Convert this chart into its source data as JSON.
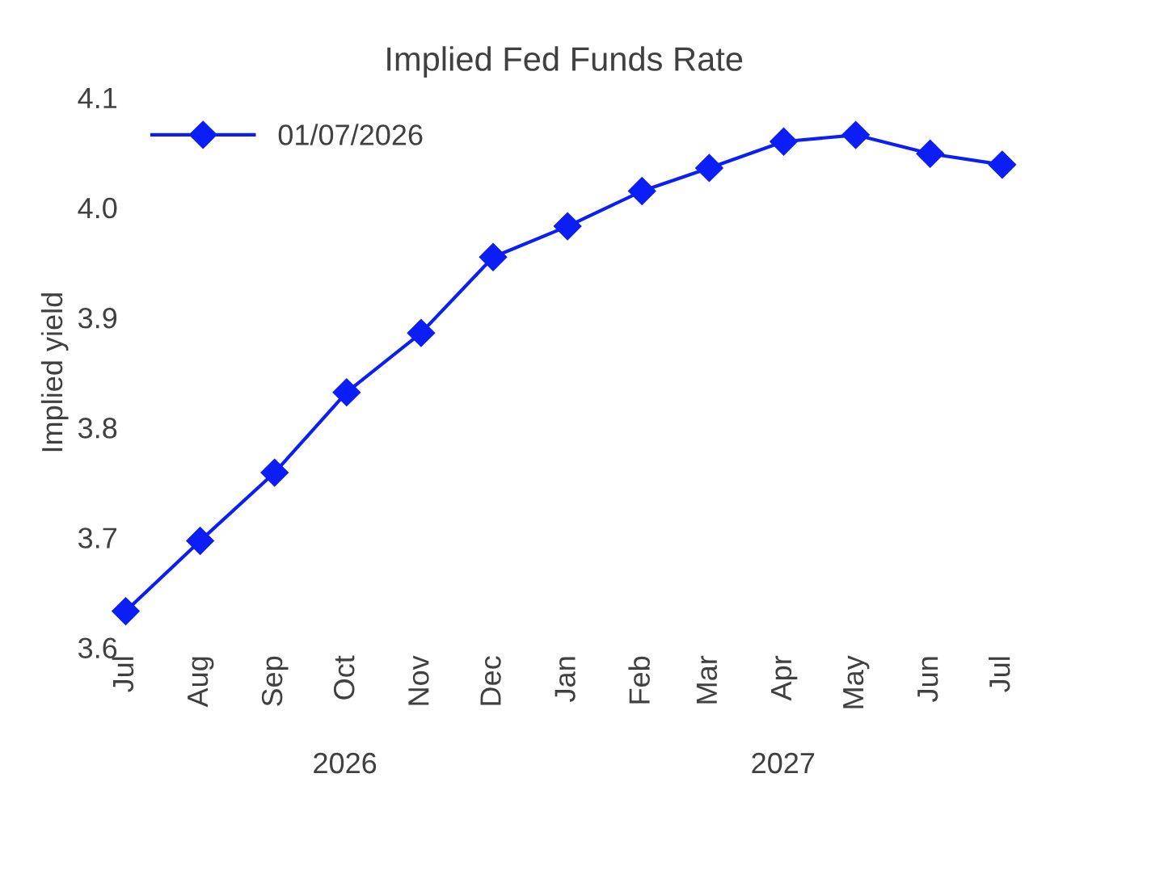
{
  "chart_data": {
    "type": "line",
    "title": "Implied Fed Funds Rate",
    "ylabel": "Implied yield",
    "x": [
      "2026-07",
      "2026-08",
      "2026-09",
      "2026-10",
      "2026-11",
      "2026-12",
      "2027-01",
      "2027-02",
      "2027-03",
      "2027-04",
      "2027-05",
      "2027-06",
      "2027-07"
    ],
    "series": [
      {
        "name": "01/07/2026",
        "color": "#0a1ef5",
        "values": [
          3.633,
          3.697,
          3.759,
          3.832,
          3.886,
          3.955,
          3.983,
          4.015,
          4.036,
          4.06,
          4.066,
          4.049,
          4.039
        ]
      }
    ],
    "xlim": [
      "2026-07",
      "2027-07"
    ],
    "xticks": [
      {
        "value": "2026-07",
        "label": "Jul"
      },
      {
        "value": "2026-08",
        "label": "Aug"
      },
      {
        "value": "2026-09",
        "label": "Sep"
      },
      {
        "value": "2026-10",
        "label": "Oct"
      },
      {
        "value": "2026-11",
        "label": "Nov"
      },
      {
        "value": "2026-12",
        "label": "Dec"
      },
      {
        "value": "2027-01",
        "label": "Jan"
      },
      {
        "value": "2027-02",
        "label": "Feb"
      },
      {
        "value": "2027-03",
        "label": "Mar"
      },
      {
        "value": "2027-04",
        "label": "Apr"
      },
      {
        "value": "2027-05",
        "label": "May"
      },
      {
        "value": "2027-06",
        "label": "Jun"
      },
      {
        "value": "2027-07",
        "label": "Jul"
      }
    ],
    "ylim": [
      3.6,
      4.1
    ],
    "yticks": [
      3.6,
      3.7,
      3.8,
      3.9,
      {
        "value": 4.0,
        "label": "4.0"
      },
      4.1
    ],
    "annotations": [
      "2026",
      "2027"
    ],
    "marker": "diamond",
    "line_style": "solid",
    "grid": false,
    "legend": "top left"
  }
}
